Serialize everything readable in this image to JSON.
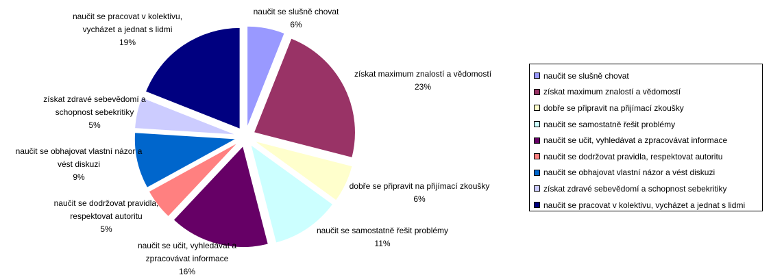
{
  "chart_data": {
    "type": "pie",
    "exploded": true,
    "legend_position": "right",
    "slices": [
      {
        "name": "naučit se slušně chovat",
        "value": 6,
        "pct_label": "6%",
        "color": "#9999FF",
        "label_lines": [
          "naučit se slušně chovat"
        ]
      },
      {
        "name": "získat maximum znalostí a vědomostí",
        "value": 23,
        "pct_label": "23%",
        "color": "#993366",
        "label_lines": [
          "získat maximum znalostí a vědomostí"
        ]
      },
      {
        "name": "dobře se připravit na přijímací zkoušky",
        "value": 6,
        "pct_label": "6%",
        "color": "#FFFFCC",
        "label_lines": [
          "dobře se připravit na přijímací zkoušky"
        ]
      },
      {
        "name": "naučit se samostatně řešit problémy",
        "value": 11,
        "pct_label": "11%",
        "color": "#CCFFFF",
        "label_lines": [
          "naučit se samostatně řešit problémy"
        ]
      },
      {
        "name": "naučit se učit, vyhledávat a zpracovávat informace",
        "value": 16,
        "pct_label": "16%",
        "color": "#660066",
        "label_lines": [
          "naučit se učit, vyhledávat a",
          "zpracovávat informace"
        ]
      },
      {
        "name": "naučit se dodržovat pravidla, respektovat autoritu",
        "value": 5,
        "pct_label": "5%",
        "color": "#FF8080",
        "label_lines": [
          "naučit se dodržovat pravidla,",
          "respektovat autoritu"
        ]
      },
      {
        "name": "naučit se obhajovat vlastní názor a vést diskuzi",
        "value": 9,
        "pct_label": "9%",
        "color": "#0066CC",
        "label_lines": [
          "naučit se obhajovat vlastní názor a",
          "vést diskuzi"
        ]
      },
      {
        "name": "získat zdravé sebevědomí a schopnost sebekritiky",
        "value": 5,
        "pct_label": "5%",
        "color": "#CCCCFF",
        "label_lines": [
          "získat zdravé sebevědomí a",
          "schopnost sebekritiky"
        ]
      },
      {
        "name": "naučit se pracovat v kolektivu, vycházet a jednat s lidmi",
        "value": 19,
        "pct_label": "19%",
        "color": "#000080",
        "label_lines": [
          "naučit se pracovat v kolektivu,",
          "vycházet a jednat s lidmi"
        ]
      }
    ]
  }
}
